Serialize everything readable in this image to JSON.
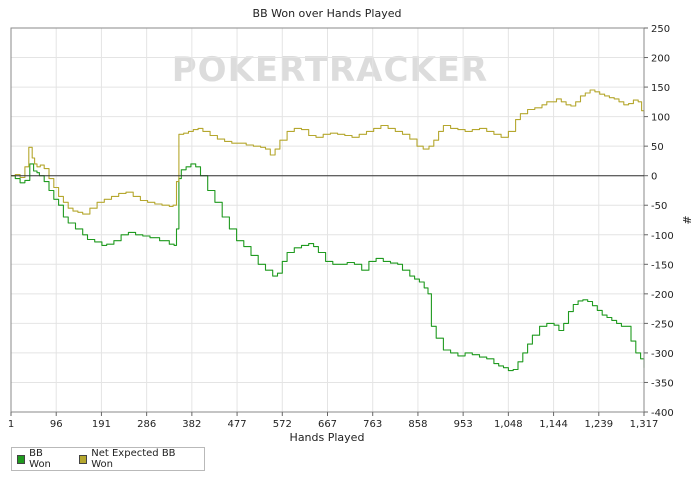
{
  "chart_data": {
    "type": "line",
    "title": "BB Won over Hands Played",
    "xlabel": "Hands Played",
    "ylabel": "#",
    "xlim": [
      1,
      1317
    ],
    "ylim": [
      -400,
      250
    ],
    "x_tick_labels": [
      "1",
      "96",
      "191",
      "286",
      "382",
      "477",
      "572",
      "667",
      "763",
      "858",
      "953",
      "1,048",
      "1,144",
      "1,239",
      "1,317"
    ],
    "y_ticks": [
      250,
      200,
      150,
      100,
      50,
      0,
      -50,
      -100,
      -150,
      -200,
      -250,
      -300,
      -350,
      -400
    ],
    "grid": true,
    "legend_position": "bottom-left",
    "watermark": "POKERTRACKER",
    "series": [
      {
        "name": "BB Won",
        "color": "#1f9a1f",
        "points": [
          [
            1,
            0
          ],
          [
            10,
            -5
          ],
          [
            20,
            -12
          ],
          [
            30,
            -8
          ],
          [
            40,
            20
          ],
          [
            48,
            8
          ],
          [
            55,
            5
          ],
          [
            60,
            0
          ],
          [
            70,
            -10
          ],
          [
            80,
            -25
          ],
          [
            90,
            -40
          ],
          [
            100,
            -50
          ],
          [
            110,
            -70
          ],
          [
            120,
            -80
          ],
          [
            135,
            -90
          ],
          [
            150,
            -100
          ],
          [
            160,
            -108
          ],
          [
            175,
            -112
          ],
          [
            190,
            -118
          ],
          [
            200,
            -116
          ],
          [
            215,
            -110
          ],
          [
            230,
            -100
          ],
          [
            245,
            -96
          ],
          [
            260,
            -100
          ],
          [
            275,
            -102
          ],
          [
            290,
            -105
          ],
          [
            310,
            -110
          ],
          [
            330,
            -116
          ],
          [
            340,
            -118
          ],
          [
            345,
            -90
          ],
          [
            350,
            -5
          ],
          [
            355,
            10
          ],
          [
            365,
            15
          ],
          [
            375,
            20
          ],
          [
            385,
            15
          ],
          [
            395,
            0
          ],
          [
            410,
            -25
          ],
          [
            425,
            -45
          ],
          [
            440,
            -70
          ],
          [
            455,
            -90
          ],
          [
            470,
            -110
          ],
          [
            485,
            -120
          ],
          [
            500,
            -135
          ],
          [
            515,
            -150
          ],
          [
            530,
            -160
          ],
          [
            545,
            -170
          ],
          [
            555,
            -165
          ],
          [
            565,
            -145
          ],
          [
            575,
            -130
          ],
          [
            590,
            -122
          ],
          [
            605,
            -118
          ],
          [
            620,
            -115
          ],
          [
            630,
            -120
          ],
          [
            640,
            -130
          ],
          [
            655,
            -145
          ],
          [
            670,
            -150
          ],
          [
            685,
            -150
          ],
          [
            700,
            -147
          ],
          [
            715,
            -150
          ],
          [
            730,
            -160
          ],
          [
            745,
            -145
          ],
          [
            760,
            -140
          ],
          [
            775,
            -145
          ],
          [
            790,
            -148
          ],
          [
            805,
            -150
          ],
          [
            815,
            -160
          ],
          [
            830,
            -170
          ],
          [
            840,
            -175
          ],
          [
            850,
            -180
          ],
          [
            860,
            -190
          ],
          [
            868,
            -200
          ],
          [
            875,
            -255
          ],
          [
            885,
            -275
          ],
          [
            900,
            -295
          ],
          [
            915,
            -300
          ],
          [
            930,
            -305
          ],
          [
            945,
            -300
          ],
          [
            960,
            -303
          ],
          [
            975,
            -307
          ],
          [
            990,
            -310
          ],
          [
            1005,
            -318
          ],
          [
            1015,
            -322
          ],
          [
            1025,
            -325
          ],
          [
            1035,
            -330
          ],
          [
            1045,
            -328
          ],
          [
            1055,
            -315
          ],
          [
            1065,
            -300
          ],
          [
            1075,
            -285
          ],
          [
            1085,
            -270
          ],
          [
            1100,
            -255
          ],
          [
            1115,
            -250
          ],
          [
            1130,
            -253
          ],
          [
            1140,
            -262
          ],
          [
            1150,
            -250
          ],
          [
            1160,
            -230
          ],
          [
            1170,
            -218
          ],
          [
            1180,
            -212
          ],
          [
            1190,
            -210
          ],
          [
            1200,
            -213
          ],
          [
            1210,
            -220
          ],
          [
            1220,
            -228
          ],
          [
            1230,
            -236
          ],
          [
            1240,
            -240
          ],
          [
            1250,
            -245
          ],
          [
            1260,
            -250
          ],
          [
            1270,
            -255
          ],
          [
            1280,
            -255
          ],
          [
            1290,
            -280
          ],
          [
            1300,
            -300
          ],
          [
            1310,
            -310
          ],
          [
            1317,
            -325
          ]
        ]
      },
      {
        "name": "Net Expected BB Won",
        "color": "#b5a72e",
        "points": [
          [
            1,
            0
          ],
          [
            10,
            2
          ],
          [
            20,
            -3
          ],
          [
            30,
            15
          ],
          [
            38,
            48
          ],
          [
            45,
            30
          ],
          [
            50,
            20
          ],
          [
            55,
            15
          ],
          [
            62,
            18
          ],
          [
            70,
            12
          ],
          [
            80,
            -5
          ],
          [
            90,
            -20
          ],
          [
            100,
            -35
          ],
          [
            110,
            -45
          ],
          [
            120,
            -55
          ],
          [
            130,
            -60
          ],
          [
            140,
            -62
          ],
          [
            150,
            -65
          ],
          [
            165,
            -55
          ],
          [
            180,
            -45
          ],
          [
            195,
            -40
          ],
          [
            210,
            -35
          ],
          [
            225,
            -30
          ],
          [
            240,
            -28
          ],
          [
            255,
            -35
          ],
          [
            270,
            -42
          ],
          [
            285,
            -45
          ],
          [
            300,
            -48
          ],
          [
            315,
            -50
          ],
          [
            330,
            -52
          ],
          [
            338,
            -50
          ],
          [
            345,
            -10
          ],
          [
            350,
            70
          ],
          [
            360,
            72
          ],
          [
            370,
            75
          ],
          [
            380,
            78
          ],
          [
            390,
            80
          ],
          [
            400,
            75
          ],
          [
            415,
            68
          ],
          [
            430,
            62
          ],
          [
            445,
            58
          ],
          [
            460,
            55
          ],
          [
            475,
            55
          ],
          [
            490,
            52
          ],
          [
            505,
            50
          ],
          [
            520,
            48
          ],
          [
            530,
            45
          ],
          [
            540,
            35
          ],
          [
            550,
            45
          ],
          [
            560,
            60
          ],
          [
            575,
            75
          ],
          [
            590,
            80
          ],
          [
            605,
            78
          ],
          [
            620,
            68
          ],
          [
            635,
            65
          ],
          [
            650,
            70
          ],
          [
            665,
            72
          ],
          [
            680,
            70
          ],
          [
            695,
            68
          ],
          [
            710,
            65
          ],
          [
            725,
            70
          ],
          [
            740,
            75
          ],
          [
            755,
            80
          ],
          [
            770,
            85
          ],
          [
            785,
            80
          ],
          [
            800,
            75
          ],
          [
            815,
            70
          ],
          [
            830,
            62
          ],
          [
            845,
            50
          ],
          [
            858,
            45
          ],
          [
            870,
            50
          ],
          [
            880,
            60
          ],
          [
            890,
            75
          ],
          [
            900,
            85
          ],
          [
            915,
            80
          ],
          [
            930,
            78
          ],
          [
            945,
            75
          ],
          [
            960,
            78
          ],
          [
            975,
            80
          ],
          [
            990,
            75
          ],
          [
            1005,
            70
          ],
          [
            1020,
            65
          ],
          [
            1035,
            75
          ],
          [
            1050,
            95
          ],
          [
            1060,
            105
          ],
          [
            1075,
            112
          ],
          [
            1090,
            115
          ],
          [
            1105,
            120
          ],
          [
            1115,
            125
          ],
          [
            1125,
            125
          ],
          [
            1135,
            130
          ],
          [
            1145,
            125
          ],
          [
            1155,
            120
          ],
          [
            1165,
            118
          ],
          [
            1175,
            125
          ],
          [
            1185,
            135
          ],
          [
            1195,
            140
          ],
          [
            1205,
            145
          ],
          [
            1215,
            142
          ],
          [
            1225,
            138
          ],
          [
            1235,
            135
          ],
          [
            1245,
            132
          ],
          [
            1255,
            130
          ],
          [
            1265,
            125
          ],
          [
            1275,
            120
          ],
          [
            1285,
            122
          ],
          [
            1295,
            128
          ],
          [
            1305,
            125
          ],
          [
            1312,
            110
          ],
          [
            1317,
            105
          ]
        ]
      }
    ]
  }
}
